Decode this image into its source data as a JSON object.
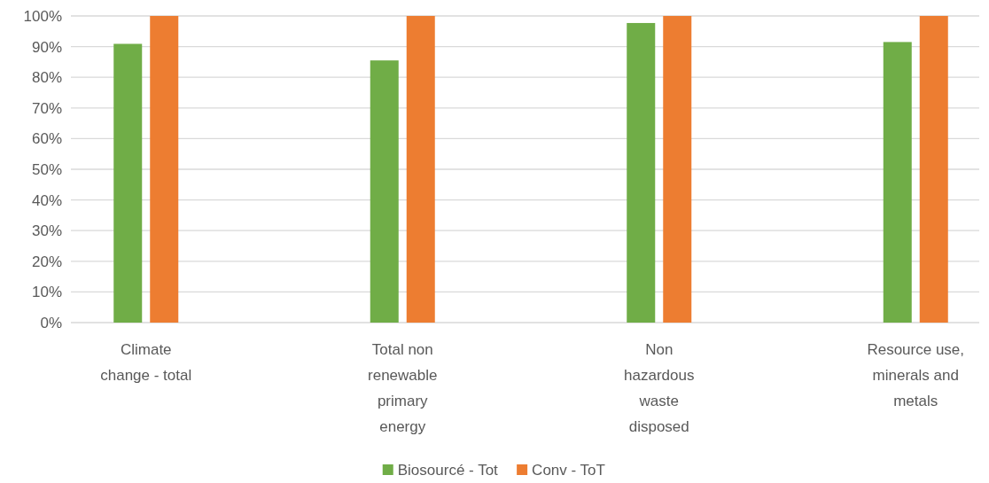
{
  "chart_data": {
    "type": "bar",
    "categories": [
      "Climate change - total",
      "Total non renewable primary energy",
      "Non hazardous waste disposed",
      "Resource use, minerals and metals"
    ],
    "series": [
      {
        "name": "Biosourcé - Tot",
        "color": "#70ad47",
        "values": [
          0.909,
          0.855,
          0.977,
          0.915
        ]
      },
      {
        "name": "Conv - ToT",
        "color": "#ed7d31",
        "values": [
          1,
          1,
          1,
          1
        ]
      }
    ],
    "ylim": [
      0,
      1
    ],
    "yticks": [
      {
        "value": 0,
        "label": "0%"
      },
      {
        "value": 0.1,
        "label": "10%"
      },
      {
        "value": 0.2,
        "label": "20%"
      },
      {
        "value": 0.3,
        "label": "30%"
      },
      {
        "value": 0.4,
        "label": "40%"
      },
      {
        "value": 0.5,
        "label": "50%"
      },
      {
        "value": 0.6,
        "label": "60%"
      },
      {
        "value": 0.7,
        "label": "70%"
      },
      {
        "value": 0.8,
        "label": "80%"
      },
      {
        "value": 0.9,
        "label": "90%"
      },
      {
        "value": 1,
        "label": "100%"
      }
    ],
    "grid": "y",
    "legend": "bottom"
  }
}
